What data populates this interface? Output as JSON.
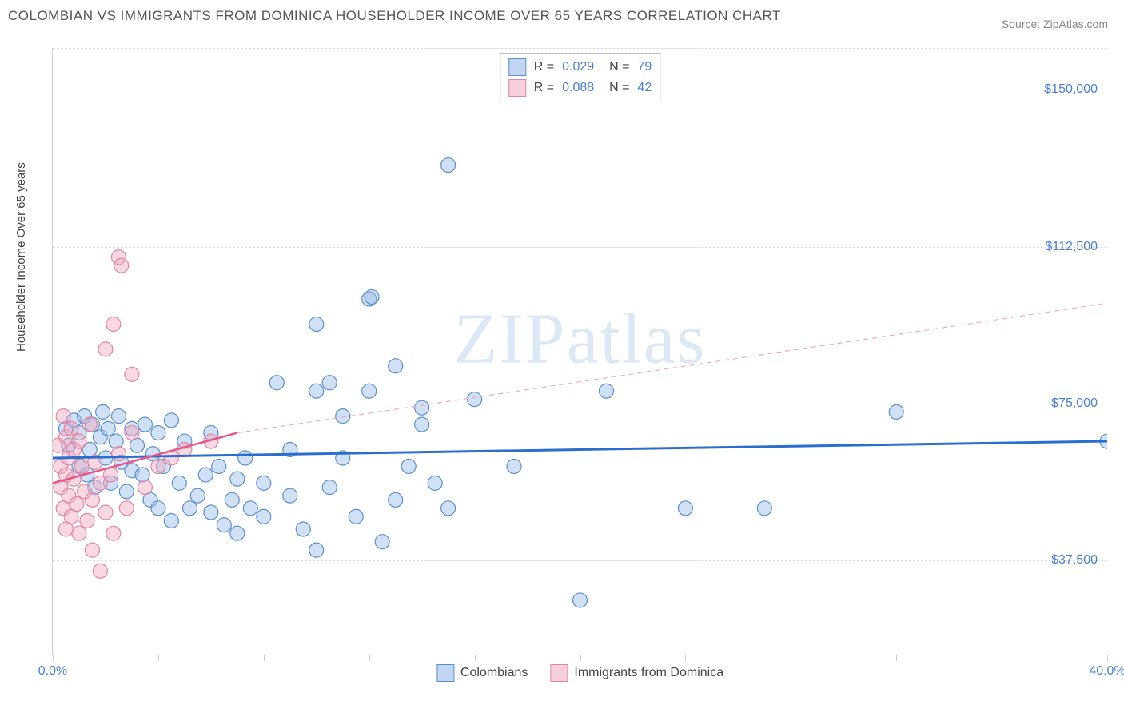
{
  "title": "COLOMBIAN VS IMMIGRANTS FROM DOMINICA HOUSEHOLDER INCOME OVER 65 YEARS CORRELATION CHART",
  "source": "Source: ZipAtlas.com",
  "watermark": {
    "part1": "ZIP",
    "part2": "atlas"
  },
  "chart": {
    "type": "scatter",
    "ylabel": "Householder Income Over 65 years",
    "xlim": [
      0,
      40
    ],
    "ylim": [
      15000,
      160000
    ],
    "xticks": [
      0,
      4,
      8,
      12,
      16,
      20,
      24,
      28,
      32,
      36,
      40
    ],
    "xtick_labels": {
      "0": "0.0%",
      "40": "40.0%"
    },
    "yticks": [
      37500,
      75000,
      112500,
      150000
    ],
    "ytick_labels": [
      "$37,500",
      "$75,000",
      "$112,500",
      "$150,000"
    ],
    "grid_color": "#dddddd",
    "axis_color": "#cccccc",
    "background_color": "#ffffff",
    "tick_label_color": "#4a7fd8",
    "marker_radius": 9,
    "marker_opacity": 0.45,
    "series": [
      {
        "name": "Colombians",
        "color_fill": "#9abde8",
        "color_stroke": "#5a8fd0",
        "R": 0.029,
        "N": 79,
        "regression": {
          "x1": 0,
          "y1": 62000,
          "x2": 40,
          "y2": 66000,
          "stroke": "#2a6fd0",
          "width": 3,
          "dash": "none"
        },
        "points": [
          [
            0.5,
            69000
          ],
          [
            0.6,
            65000
          ],
          [
            0.8,
            71000
          ],
          [
            1.0,
            68000
          ],
          [
            1.0,
            60000
          ],
          [
            1.2,
            72000
          ],
          [
            1.3,
            58000
          ],
          [
            1.4,
            64000
          ],
          [
            1.5,
            70000
          ],
          [
            1.6,
            55000
          ],
          [
            1.8,
            67000
          ],
          [
            1.9,
            73000
          ],
          [
            2.0,
            62000
          ],
          [
            2.1,
            69000
          ],
          [
            2.2,
            56000
          ],
          [
            2.4,
            66000
          ],
          [
            2.5,
            72000
          ],
          [
            2.6,
            61000
          ],
          [
            2.8,
            54000
          ],
          [
            3.0,
            69000
          ],
          [
            3.0,
            59000
          ],
          [
            3.2,
            65000
          ],
          [
            3.4,
            58000
          ],
          [
            3.5,
            70000
          ],
          [
            3.7,
            52000
          ],
          [
            3.8,
            63000
          ],
          [
            4.0,
            68000
          ],
          [
            4.0,
            50000
          ],
          [
            4.2,
            60000
          ],
          [
            4.5,
            71000
          ],
          [
            4.5,
            47000
          ],
          [
            4.8,
            56000
          ],
          [
            5.0,
            66000
          ],
          [
            5.2,
            50000
          ],
          [
            5.5,
            53000
          ],
          [
            5.8,
            58000
          ],
          [
            6.0,
            49000
          ],
          [
            6.0,
            68000
          ],
          [
            6.3,
            60000
          ],
          [
            6.5,
            46000
          ],
          [
            6.8,
            52000
          ],
          [
            7.0,
            57000
          ],
          [
            7.0,
            44000
          ],
          [
            7.3,
            62000
          ],
          [
            7.5,
            50000
          ],
          [
            8.0,
            56000
          ],
          [
            8.0,
            48000
          ],
          [
            8.5,
            80000
          ],
          [
            9.0,
            64000
          ],
          [
            9.0,
            53000
          ],
          [
            9.5,
            45000
          ],
          [
            10.0,
            94000
          ],
          [
            10.0,
            78000
          ],
          [
            10.0,
            40000
          ],
          [
            10.5,
            80000
          ],
          [
            10.5,
            55000
          ],
          [
            11.0,
            62000
          ],
          [
            11.0,
            72000
          ],
          [
            11.5,
            48000
          ],
          [
            12.0,
            78000
          ],
          [
            12.0,
            100000
          ],
          [
            12.1,
            100500
          ],
          [
            12.5,
            42000
          ],
          [
            13.0,
            84000
          ],
          [
            13.0,
            52000
          ],
          [
            13.5,
            60000
          ],
          [
            14.0,
            70000
          ],
          [
            14.0,
            74000
          ],
          [
            14.5,
            56000
          ],
          [
            15.0,
            132000
          ],
          [
            15.0,
            50000
          ],
          [
            16.0,
            76000
          ],
          [
            17.5,
            60000
          ],
          [
            20.0,
            28000
          ],
          [
            21.0,
            78000
          ],
          [
            24.0,
            50000
          ],
          [
            27.0,
            50000
          ],
          [
            32.0,
            73000
          ],
          [
            40.0,
            66000
          ]
        ]
      },
      {
        "name": "Immigrants from Dominica",
        "color_fill": "#f2a9bf",
        "color_stroke": "#e085a5",
        "R": 0.088,
        "N": 42,
        "regression_solid": {
          "x1": 0,
          "y1": 56000,
          "x2": 7,
          "y2": 68000,
          "stroke": "#e8558a",
          "width": 2.5
        },
        "regression_dash": {
          "x1": 7,
          "y1": 68000,
          "x2": 40,
          "y2": 99000,
          "stroke": "#f2a9bf",
          "width": 1.2,
          "dash": "6,5"
        },
        "points": [
          [
            0.2,
            65000
          ],
          [
            0.3,
            60000
          ],
          [
            0.3,
            55000
          ],
          [
            0.4,
            72000
          ],
          [
            0.4,
            50000
          ],
          [
            0.5,
            67000
          ],
          [
            0.5,
            58000
          ],
          [
            0.5,
            45000
          ],
          [
            0.6,
            62000
          ],
          [
            0.6,
            53000
          ],
          [
            0.7,
            69000
          ],
          [
            0.7,
            48000
          ],
          [
            0.8,
            64000
          ],
          [
            0.8,
            57000
          ],
          [
            0.9,
            51000
          ],
          [
            1.0,
            66000
          ],
          [
            1.0,
            44000
          ],
          [
            1.1,
            60000
          ],
          [
            1.2,
            54000
          ],
          [
            1.3,
            47000
          ],
          [
            1.4,
            70000
          ],
          [
            1.5,
            52000
          ],
          [
            1.5,
            40000
          ],
          [
            1.6,
            61000
          ],
          [
            1.8,
            56000
          ],
          [
            1.8,
            35000
          ],
          [
            2.0,
            49000
          ],
          [
            2.0,
            88000
          ],
          [
            2.2,
            58000
          ],
          [
            2.3,
            94000
          ],
          [
            2.3,
            44000
          ],
          [
            2.5,
            63000
          ],
          [
            2.5,
            110000
          ],
          [
            2.6,
            108000
          ],
          [
            2.8,
            50000
          ],
          [
            3.0,
            68000
          ],
          [
            3.0,
            82000
          ],
          [
            3.5,
            55000
          ],
          [
            4.0,
            60000
          ],
          [
            4.5,
            62000
          ],
          [
            5.0,
            64000
          ],
          [
            6.0,
            66000
          ]
        ]
      }
    ],
    "legend_bottom": [
      {
        "swatch": "blue",
        "label": "Colombians"
      },
      {
        "swatch": "pink",
        "label": "Immigrants from Dominica"
      }
    ]
  }
}
